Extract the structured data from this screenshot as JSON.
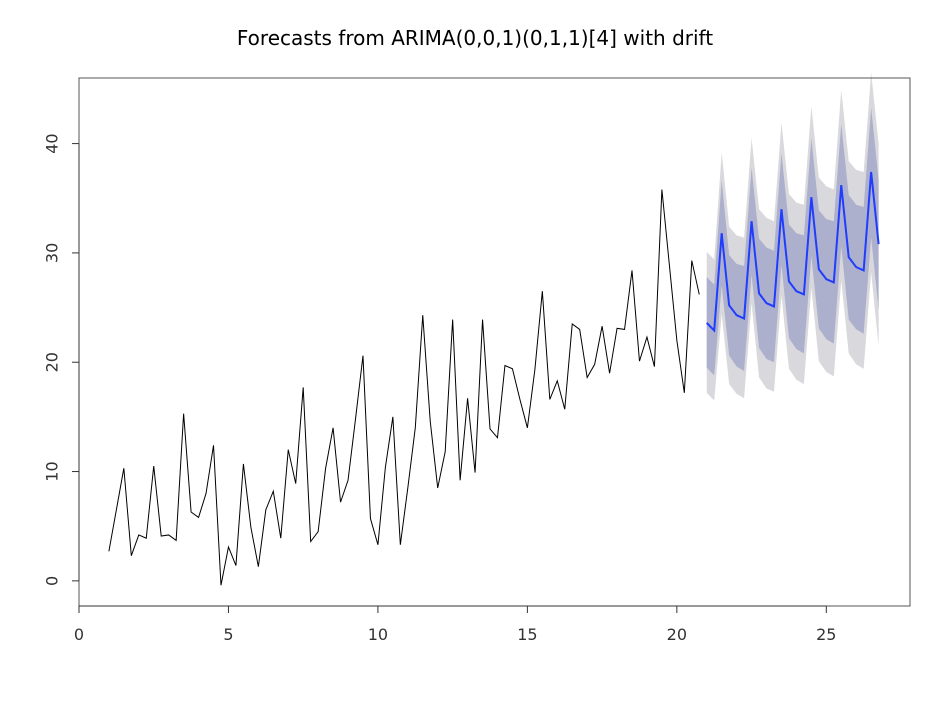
{
  "chart_data": {
    "type": "line",
    "title": "Forecasts from ARIMA(0,0,1)(0,1,1)[4] with drift",
    "xlabel": "",
    "ylabel": "",
    "xlim": [
      0,
      27.8
    ],
    "ylim": [
      -2.3,
      46
    ],
    "xticks": [
      0,
      5,
      10,
      15,
      20,
      25
    ],
    "yticks": [
      0,
      10,
      20,
      30,
      40
    ],
    "grid": false,
    "colors": {
      "history": "#000000",
      "forecast": "#1f3cff",
      "band80": "#adb0cc",
      "band95": "#d9d9dd"
    },
    "series": [
      {
        "values": [
          [
            1.0,
            2.7
          ],
          [
            1.25,
            6.5
          ],
          [
            1.5,
            10.3
          ],
          [
            1.75,
            2.3
          ],
          [
            2.0,
            4.2
          ],
          [
            2.25,
            3.9
          ],
          [
            2.5,
            10.5
          ],
          [
            2.75,
            4.1
          ],
          [
            3.0,
            4.2
          ],
          [
            3.25,
            3.7
          ],
          [
            3.5,
            15.3
          ],
          [
            3.75,
            6.3
          ],
          [
            4.0,
            5.8
          ],
          [
            4.25,
            8.0
          ],
          [
            4.5,
            12.4
          ],
          [
            4.75,
            -0.4
          ],
          [
            5.0,
            3.1
          ],
          [
            5.25,
            1.4
          ],
          [
            5.5,
            10.7
          ],
          [
            5.75,
            4.9
          ],
          [
            6.0,
            1.3
          ],
          [
            6.25,
            6.5
          ],
          [
            6.5,
            8.2
          ],
          [
            6.75,
            3.9
          ],
          [
            7.0,
            12.0
          ],
          [
            7.25,
            8.9
          ],
          [
            7.5,
            17.7
          ],
          [
            7.75,
            3.6
          ],
          [
            8.0,
            4.5
          ],
          [
            8.25,
            10.3
          ],
          [
            8.5,
            14.0
          ],
          [
            8.75,
            7.2
          ],
          [
            9.0,
            9.2
          ],
          [
            9.25,
            14.8
          ],
          [
            9.5,
            20.6
          ],
          [
            9.75,
            5.7
          ],
          [
            10.0,
            3.3
          ],
          [
            10.25,
            10.4
          ],
          [
            10.5,
            15.0
          ],
          [
            10.75,
            3.3
          ],
          [
            11.0,
            8.5
          ],
          [
            11.25,
            14.0
          ],
          [
            11.5,
            24.3
          ],
          [
            11.75,
            14.6
          ],
          [
            12.0,
            8.5
          ],
          [
            12.25,
            11.8
          ],
          [
            12.5,
            23.9
          ],
          [
            12.75,
            9.2
          ],
          [
            13.0,
            16.7
          ],
          [
            13.25,
            9.9
          ],
          [
            13.5,
            23.9
          ],
          [
            13.75,
            13.9
          ],
          [
            14.0,
            13.1
          ],
          [
            14.25,
            19.7
          ],
          [
            14.5,
            19.4
          ],
          [
            14.75,
            16.6
          ],
          [
            15.0,
            14.0
          ],
          [
            15.25,
            19.3
          ],
          [
            15.5,
            26.5
          ],
          [
            15.75,
            16.6
          ],
          [
            16.0,
            18.3
          ],
          [
            16.25,
            15.7
          ],
          [
            16.5,
            23.5
          ],
          [
            16.75,
            23.0
          ],
          [
            17.0,
            18.6
          ],
          [
            17.25,
            19.8
          ],
          [
            17.5,
            23.3
          ],
          [
            17.75,
            19.0
          ],
          [
            18.0,
            23.1
          ],
          [
            18.25,
            23.0
          ],
          [
            18.5,
            28.4
          ],
          [
            18.75,
            20.1
          ],
          [
            19.0,
            22.3
          ],
          [
            19.25,
            19.6
          ],
          [
            19.5,
            35.8
          ],
          [
            19.75,
            28.9
          ],
          [
            20.0,
            22.0
          ],
          [
            20.25,
            17.2
          ],
          [
            20.5,
            29.3
          ],
          [
            20.75,
            26.2
          ]
        ]
      },
      {
        "values": [
          [
            21.0,
            23.6
          ],
          [
            21.25,
            22.9
          ],
          [
            21.5,
            31.8
          ],
          [
            21.75,
            25.2
          ],
          [
            22.0,
            24.3
          ],
          [
            22.25,
            24.0
          ],
          [
            22.5,
            32.9
          ],
          [
            22.75,
            26.3
          ],
          [
            23.0,
            25.4
          ],
          [
            23.25,
            25.1
          ],
          [
            23.5,
            34.0
          ],
          [
            23.75,
            27.4
          ],
          [
            24.0,
            26.5
          ],
          [
            24.25,
            26.2
          ],
          [
            24.5,
            35.1
          ],
          [
            24.75,
            28.5
          ],
          [
            25.0,
            27.6
          ],
          [
            25.25,
            27.3
          ],
          [
            25.5,
            36.2
          ],
          [
            25.75,
            29.6
          ],
          [
            26.0,
            28.7
          ],
          [
            26.25,
            28.4
          ],
          [
            26.5,
            37.4
          ],
          [
            26.75,
            30.8
          ]
        ],
        "lo80": [
          19.5,
          18.8,
          27.0,
          20.6,
          19.6,
          19.2,
          28.0,
          21.3,
          20.3,
          20.0,
          28.9,
          22.2,
          21.2,
          20.8,
          29.7,
          23.1,
          22.1,
          21.7,
          30.6,
          23.9,
          23.0,
          22.6,
          31.4,
          24.8
        ],
        "hi80": [
          27.8,
          27.1,
          36.6,
          29.8,
          29.0,
          28.8,
          37.8,
          31.3,
          30.5,
          30.2,
          39.1,
          32.6,
          31.8,
          31.6,
          40.5,
          33.9,
          33.1,
          32.9,
          41.8,
          35.3,
          34.4,
          34.2,
          43.3,
          36.7
        ],
        "lo95": [
          17.2,
          16.5,
          24.4,
          18.0,
          17.1,
          16.7,
          25.4,
          18.6,
          17.6,
          17.3,
          26.1,
          19.4,
          18.4,
          18.0,
          26.8,
          20.1,
          19.1,
          18.7,
          27.5,
          20.8,
          19.8,
          19.4,
          28.2,
          21.5
        ],
        "hi95": [
          30.1,
          29.4,
          39.2,
          32.4,
          31.6,
          31.4,
          40.5,
          34.0,
          33.2,
          32.9,
          41.9,
          35.4,
          34.6,
          34.4,
          43.4,
          36.9,
          36.1,
          35.8,
          44.9,
          38.4,
          37.6,
          37.4,
          46.5,
          40.0
        ]
      }
    ]
  }
}
